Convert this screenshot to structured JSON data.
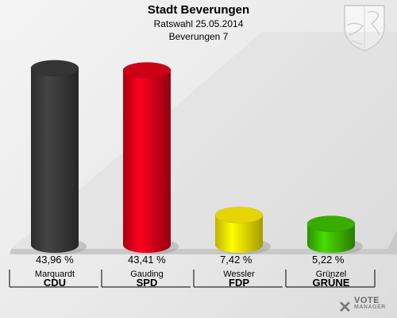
{
  "chart_data": {
    "type": "bar",
    "title": "Stadt Beverungen",
    "subtitle1": "Ratswahl 25.05.2014",
    "subtitle2": "Beverungen 7",
    "ylim": [
      0,
      50
    ],
    "bars": [
      {
        "candidate": "Marquardt",
        "party": "CDU",
        "value": 43.96,
        "label": "43,96 %",
        "color": "#3b3b3b"
      },
      {
        "candidate": "Gauding",
        "party": "SPD",
        "value": 43.41,
        "label": "43,41 %",
        "color": "#e2001a"
      },
      {
        "candidate": "Wessler",
        "party": "FDP",
        "value": 7.42,
        "label": "7,42 %",
        "color": "#ffed00"
      },
      {
        "candidate": "Grünzel",
        "party": "GRÜNE",
        "value": 5.22,
        "label": "5,22 %",
        "color": "#3fbf00"
      }
    ]
  },
  "logo": {
    "line1": "VOTE",
    "line2": "MANAGER"
  }
}
